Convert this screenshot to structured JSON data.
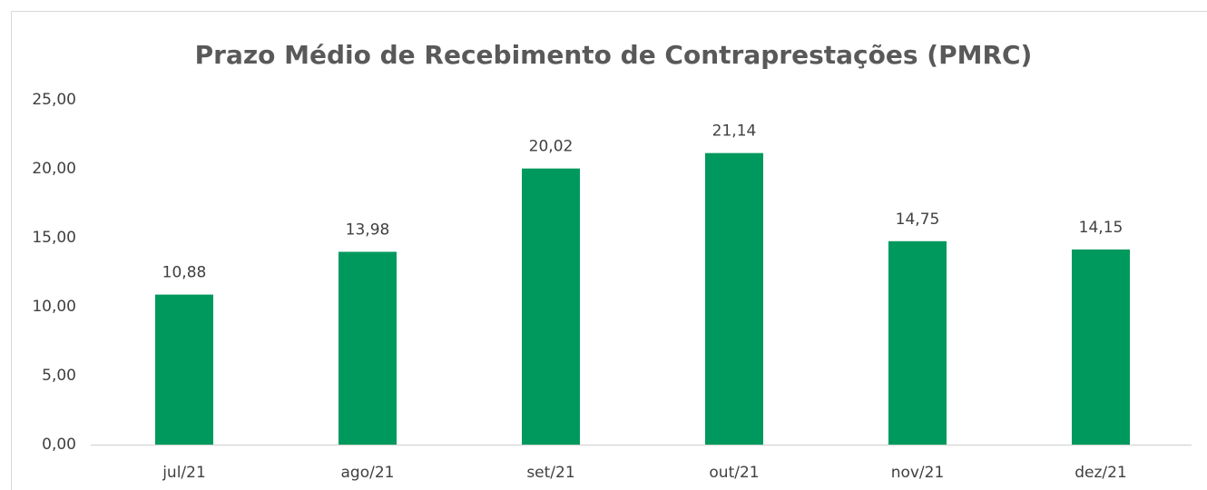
{
  "chart_data": {
    "type": "bar",
    "title": "Prazo Médio de Recebimento de Contraprestações (PMRC)",
    "categories": [
      "jul/21",
      "ago/21",
      "set/21",
      "out/21",
      "nov/21",
      "dez/21"
    ],
    "values": [
      10.88,
      13.98,
      20.02,
      21.14,
      14.75,
      14.15
    ],
    "value_labels": [
      "10,88",
      "13,98",
      "20,02",
      "21,14",
      "14,75",
      "14,15"
    ],
    "color": "#00995d",
    "ylim": [
      0,
      25
    ],
    "yticks": [
      {
        "value": 0,
        "label": "0,00"
      },
      {
        "value": 5,
        "label": "5,00"
      },
      {
        "value": 10,
        "label": "10,00"
      },
      {
        "value": 15,
        "label": "15,00"
      },
      {
        "value": 20,
        "label": "20,00"
      },
      {
        "value": 25,
        "label": "25,00"
      }
    ],
    "grid": false
  }
}
